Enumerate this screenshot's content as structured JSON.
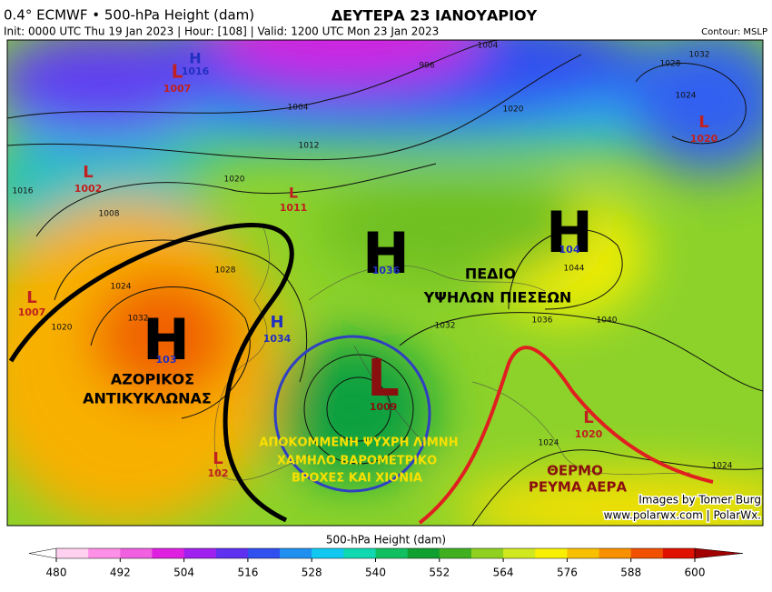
{
  "header": {
    "title": "0.4° ECMWF • 500-hPa Height (dam)",
    "init": "Init: 0000 UTC Thu 19 Jan 2023 | Hour: [108] | Valid: 1200 UTC Mon 23 Jan 2023",
    "headline": "ΔΕΥΤΕΡΑ 23 ΙΑΝΟΥΑΡΙΟΥ",
    "contour": "Contour: MSLP"
  },
  "centers": [
    {
      "letter": "L",
      "value": "1007"
    },
    {
      "letter": "H",
      "value": "1016"
    },
    {
      "letter": "L",
      "value": "1020"
    },
    {
      "letter": "L",
      "value": "1002"
    },
    {
      "letter": "L",
      "value": "1011"
    },
    {
      "letter": "L",
      "value": "1007"
    },
    {
      "letter": "H",
      "value": "1034"
    },
    {
      "letter": "L",
      "value": "1009"
    },
    {
      "letter": "L",
      "value": "102"
    },
    {
      "letter": "L",
      "value": "1020"
    },
    {
      "letter": "H",
      "value": "103"
    },
    {
      "letter": "H",
      "value": "1036"
    },
    {
      "letter": "H",
      "value": "104"
    }
  ],
  "contour_labels": [
    "996",
    "1004",
    "1012",
    "1020",
    "1008",
    "1016",
    "1028",
    "1024",
    "1032",
    "1020",
    "1004",
    "1020",
    "1028",
    "1032",
    "1024",
    "1044",
    "1040",
    "1036",
    "1032",
    "1024",
    "1024"
  ],
  "annotations": [
    "ΑΖΟΡΙΚΟΣ",
    "ΑΝΤΙΚΥΚΛΩΝΑΣ",
    "ΠΕΔΙΟ",
    "ΥΨΗΛΩΝ ΠΙΕΣΕΩΝ",
    "ΑΠΟΚΟΜΜΕΝΗ ΨΥΧΡΗ ΛΙΜΝΗ",
    "ΧΑΜΗΛΟ ΒΑΡΟΜΕΤΡΙΚΟ",
    "ΒΡΟΧΕΣ ΚΑΙ ΧΙΟΝΙΑ",
    "ΘΕΡΜΟ",
    "ΡΕΥΜΑ ΑΕΡΑ"
  ],
  "credits": [
    "Images by Tomer Burg",
    "www.polarwx.com | PolarWx."
  ],
  "colorbar": {
    "label": "500-hPa Height (dam)",
    "lim": [
      480,
      600
    ],
    "ticks": [
      480,
      492,
      504,
      516,
      528,
      540,
      552,
      564,
      576,
      588,
      600
    ],
    "colors": [
      "#ffffff",
      "#ffd0f0",
      "#ff90e8",
      "#f060e0",
      "#e020e0",
      "#a020f0",
      "#6030f0",
      "#3050f0",
      "#2090f0",
      "#10c8f0",
      "#10d8b0",
      "#10c060",
      "#10a030",
      "#40b020",
      "#90d020",
      "#d0e820",
      "#f8f000",
      "#f8c000",
      "#f89000",
      "#f05000",
      "#e01000",
      "#a00000"
    ]
  }
}
